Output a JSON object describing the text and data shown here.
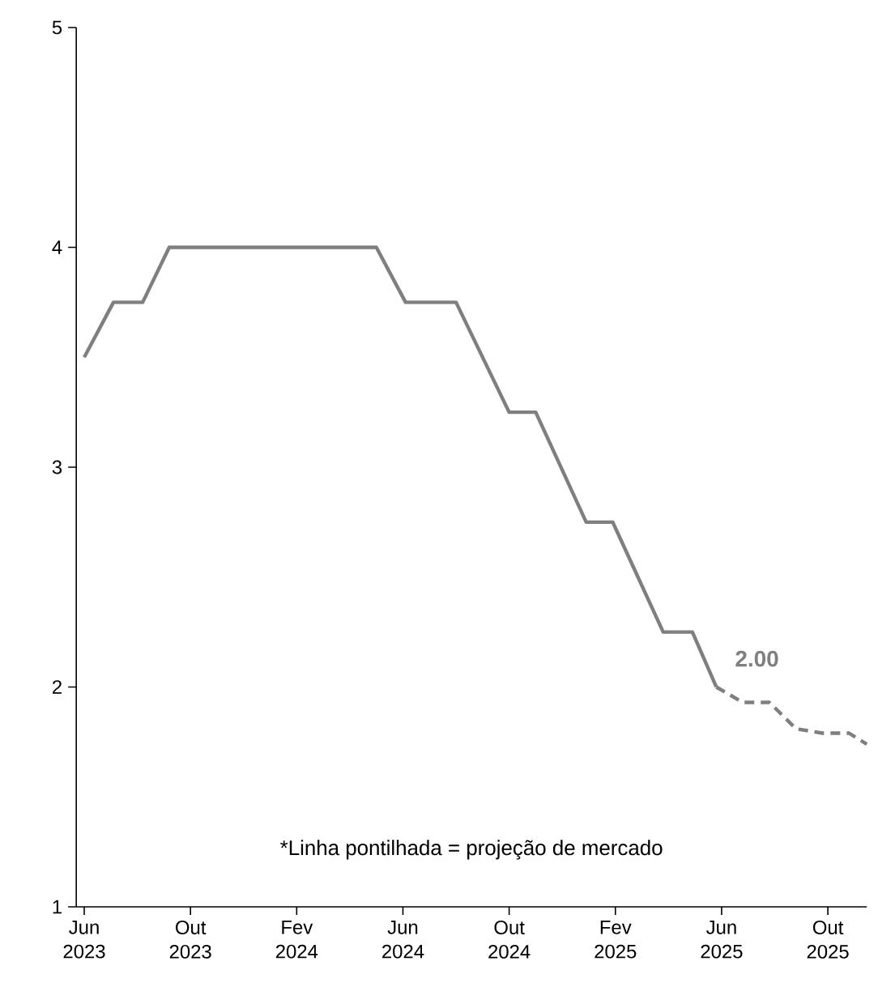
{
  "chart_data": {
    "type": "line",
    "series": [
      {
        "color": "#7f7f7f",
        "line_style": "solid",
        "x": [
          "2023-06-01",
          "2023-07-04",
          "2023-08-07",
          "2023-09-07",
          "2024-05-01",
          "2024-06-04",
          "2024-08-01",
          "2024-10-01",
          "2024-11-01",
          "2024-12-28",
          "2025-01-28",
          "2025-03-25",
          "2025-04-28",
          "2025-05-25"
        ],
        "values": [
          3.5,
          3.75,
          3.75,
          4,
          4,
          3.75,
          3.75,
          3.25,
          3.25,
          2.75,
          2.75,
          2.25,
          2.25,
          2.0
        ]
      },
      {
        "color": "#7f7f7f",
        "line_style": "dashed",
        "x": [
          "2025-05-25",
          "2025-06-25",
          "2025-07-25",
          "2025-08-25",
          "2025-09-25",
          "2025-10-25",
          "2025-11-15"
        ],
        "values": [
          2.0,
          1.93,
          1.93,
          1.81,
          1.79,
          1.79,
          1.74
        ]
      }
    ],
    "xlim": [
      "2023-05-22",
      "2025-11-15"
    ],
    "xticks": [
      {
        "value": "2023-06-01",
        "label": "Jun 2023"
      },
      {
        "value": "2023-10-01",
        "label": "Out 2023"
      },
      {
        "value": "2024-02-01",
        "label": "Fev 2024"
      },
      {
        "value": "2024-06-01",
        "label": "Jun 2024"
      },
      {
        "value": "2024-10-01",
        "label": "Out 2024"
      },
      {
        "value": "2025-02-01",
        "label": "Fev 2025"
      },
      {
        "value": "2025-06-01",
        "label": "Jun 2025"
      },
      {
        "value": "2025-10-01",
        "label": "Out 2025"
      }
    ],
    "ylim": [
      1,
      5
    ],
    "yticks": [
      1,
      2,
      3,
      4,
      5
    ],
    "grid": false,
    "marker": "none",
    "annotations": [
      {
        "text": "2.00",
        "x": "2025-05-25",
        "y": 2.0
      },
      "*Linha pontilhada = projeção de mercado"
    ]
  }
}
